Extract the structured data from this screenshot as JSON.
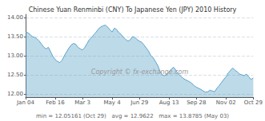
{
  "chart_data": {
    "type": "area",
    "title": "Chinese Yuan Renminbi (CNY) To Japanese Yen (JPY) 2010 History",
    "annotations": [
      "Copyright © fx-exchange.com",
      "min = 12.05161 (Oct 29)   avg = 12.9622   max = 13.8785 (May 03)"
    ],
    "categories": [
      "Jan 04",
      null,
      null,
      null,
      null,
      null,
      null,
      null,
      null,
      null,
      null,
      null,
      null,
      "Feb 16",
      null,
      null,
      null,
      null,
      null,
      null,
      null,
      null,
      null,
      null,
      null,
      "Mar 3",
      null,
      null,
      null,
      null,
      null,
      null,
      null,
      null,
      null,
      null,
      null,
      null,
      "May 4",
      null,
      null,
      null,
      null,
      null,
      null,
      null,
      null,
      null,
      null,
      null,
      "Jun 29",
      null,
      null,
      null,
      null,
      null,
      null,
      null,
      null,
      null,
      null,
      null,
      null,
      "Aug 13",
      null,
      null,
      null,
      null,
      null,
      null,
      null,
      null,
      null,
      null,
      null,
      "Sep 28",
      null,
      null,
      null,
      null,
      null,
      null,
      null,
      null,
      null,
      null,
      null,
      null,
      "Nov 02",
      null,
      null,
      null,
      null,
      null,
      null,
      null,
      null,
      null,
      null,
      null,
      "Oct 29"
    ],
    "values": [
      13.62,
      13.6,
      13.55,
      13.5,
      13.48,
      13.44,
      13.38,
      13.3,
      13.22,
      13.18,
      13.22,
      13.1,
      12.98,
      12.9,
      12.85,
      12.82,
      12.88,
      13.0,
      13.1,
      13.2,
      13.28,
      13.32,
      13.3,
      13.22,
      13.18,
      13.15,
      13.22,
      13.32,
      13.42,
      13.48,
      13.55,
      13.62,
      13.7,
      13.75,
      13.78,
      13.8,
      13.75,
      13.68,
      13.62,
      13.72,
      13.68,
      13.6,
      13.55,
      13.48,
      13.42,
      13.38,
      13.42,
      13.5,
      13.48,
      13.42,
      13.38,
      13.35,
      13.28,
      13.2,
      13.12,
      13.0,
      12.95,
      12.85,
      12.75,
      12.6,
      12.5,
      12.48,
      12.52,
      12.58,
      12.65,
      12.7,
      12.62,
      12.52,
      12.48,
      12.42,
      12.38,
      12.35,
      12.32,
      12.28,
      12.22,
      12.18,
      12.15,
      12.12,
      12.08,
      12.05,
      12.06,
      12.1,
      12.08,
      12.06,
      12.15,
      12.22,
      12.3,
      12.38,
      12.45,
      12.55,
      12.62,
      12.68,
      12.62,
      12.58,
      12.52,
      12.5,
      12.48,
      12.52,
      12.45,
      12.38,
      12.42
    ],
    "color": "#5ba3c9",
    "ylim": [
      11.92,
      14.08
    ],
    "yticks": [
      {
        "value": 12,
        "label": "12.00"
      },
      {
        "value": 12.5,
        "label": "12.50"
      },
      {
        "value": 13,
        "label": "13.00"
      },
      {
        "value": 13.5,
        "label": "13.50"
      },
      {
        "value": 14,
        "label": "14.00"
      }
    ],
    "grid": true
  }
}
